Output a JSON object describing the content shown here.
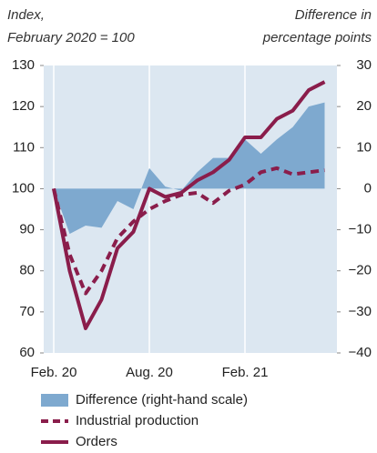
{
  "chart_data": {
    "type": "line",
    "y_label": [
      "Index,",
      "February 2020 = 100"
    ],
    "y2_label": [
      "Difference in",
      "percentage points"
    ],
    "categories": [
      "Feb. 20",
      null,
      null,
      null,
      null,
      null,
      "Aug. 20",
      null,
      null,
      null,
      null,
      null,
      "Feb. 21",
      null,
      null,
      null,
      null,
      null
    ],
    "ylim": [
      60,
      130
    ],
    "yticks": [
      60,
      70,
      80,
      90,
      100,
      110,
      120,
      130
    ],
    "y2lim": [
      -40,
      30
    ],
    "y2ticks": [
      {
        "value": -40,
        "label": "−40"
      },
      {
        "value": -30,
        "label": "−30"
      },
      {
        "value": -20,
        "label": "−20"
      },
      {
        "value": -10,
        "label": "−10"
      },
      0,
      10,
      20,
      30
    ],
    "background": "#dce7f1",
    "series": [
      {
        "name": "Difference (right-hand scale)",
        "type": "area",
        "axis": "y2",
        "color": "#7ea9cf",
        "values": [
          0,
          -11,
          -9,
          -9.5,
          -3,
          -5,
          5,
          0.5,
          -0.5,
          4,
          7.5,
          7.5,
          12,
          8.5,
          12,
          15,
          20,
          21
        ]
      },
      {
        "name": "Industrial production",
        "type": "dashed",
        "color": "#8a1d4b",
        "values": [
          100,
          84,
          74.5,
          80,
          88,
          92,
          95,
          97,
          98.5,
          99,
          96.5,
          99.5,
          101,
          104,
          105,
          103.5,
          104,
          104.5
        ]
      },
      {
        "name": "Orders",
        "type": "solid",
        "color": "#8a1d4b",
        "values": [
          100,
          80,
          66,
          73,
          85.5,
          89.5,
          100,
          98,
          99,
          102,
          104,
          107,
          112.5,
          112.5,
          117,
          119,
          124,
          126
        ]
      }
    ]
  }
}
